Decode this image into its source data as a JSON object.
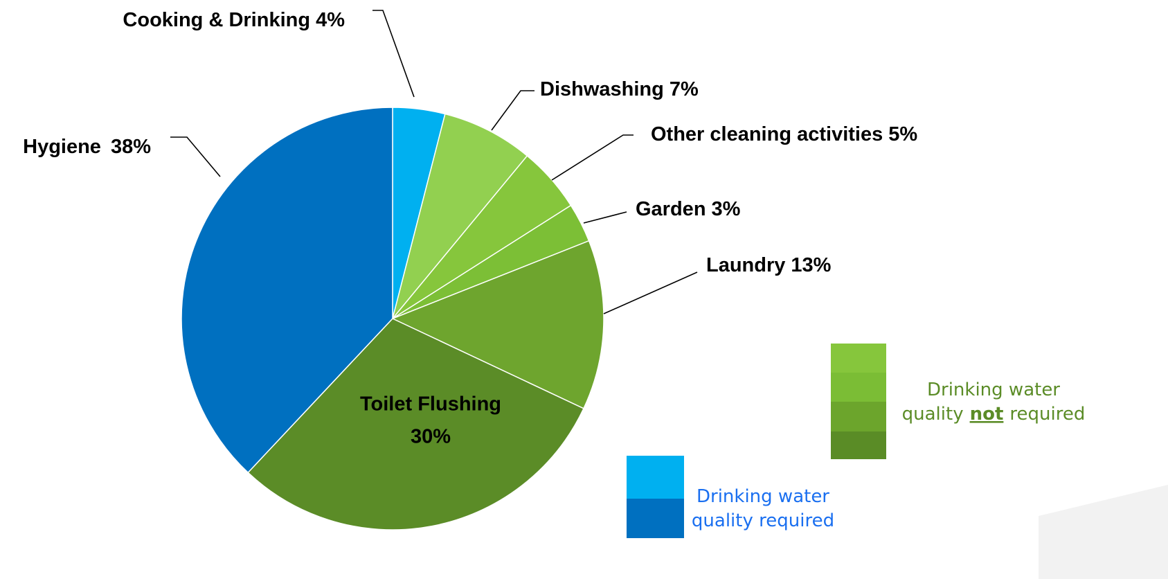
{
  "chart_data": {
    "type": "pie",
    "categories": [
      "Cooking & Drinking",
      "Dishwashing",
      "Other cleaning activities",
      "Garden",
      "Laundry",
      "Toilet Flushing",
      "Hygiene"
    ],
    "values": [
      4,
      7,
      5,
      3,
      13,
      30,
      38
    ],
    "value_labels": [
      "4%",
      "7%",
      "5%",
      "3%",
      "13%",
      "30%",
      "38%"
    ],
    "colors": [
      "#00b0f0",
      "#92d050",
      "#86c63c",
      "#7cbf36",
      "#6ea52e",
      "#5b8c27",
      "#0070c0"
    ],
    "legend": [
      {
        "colors": [
          "#00b0f0",
          "#0070c0"
        ],
        "color": "#1a6ff0",
        "lines": [
          [
            "Drinking water"
          ],
          [
            "quality required"
          ]
        ]
      },
      {
        "colors": [
          "#86c63c",
          "#7bbd35",
          "#6ca52c",
          "#5a8c26"
        ],
        "color": "#5b8c27",
        "lines": [
          [
            "Drinking water"
          ],
          [
            "quality",
            "not",
            "required"
          ]
        ]
      }
    ]
  }
}
